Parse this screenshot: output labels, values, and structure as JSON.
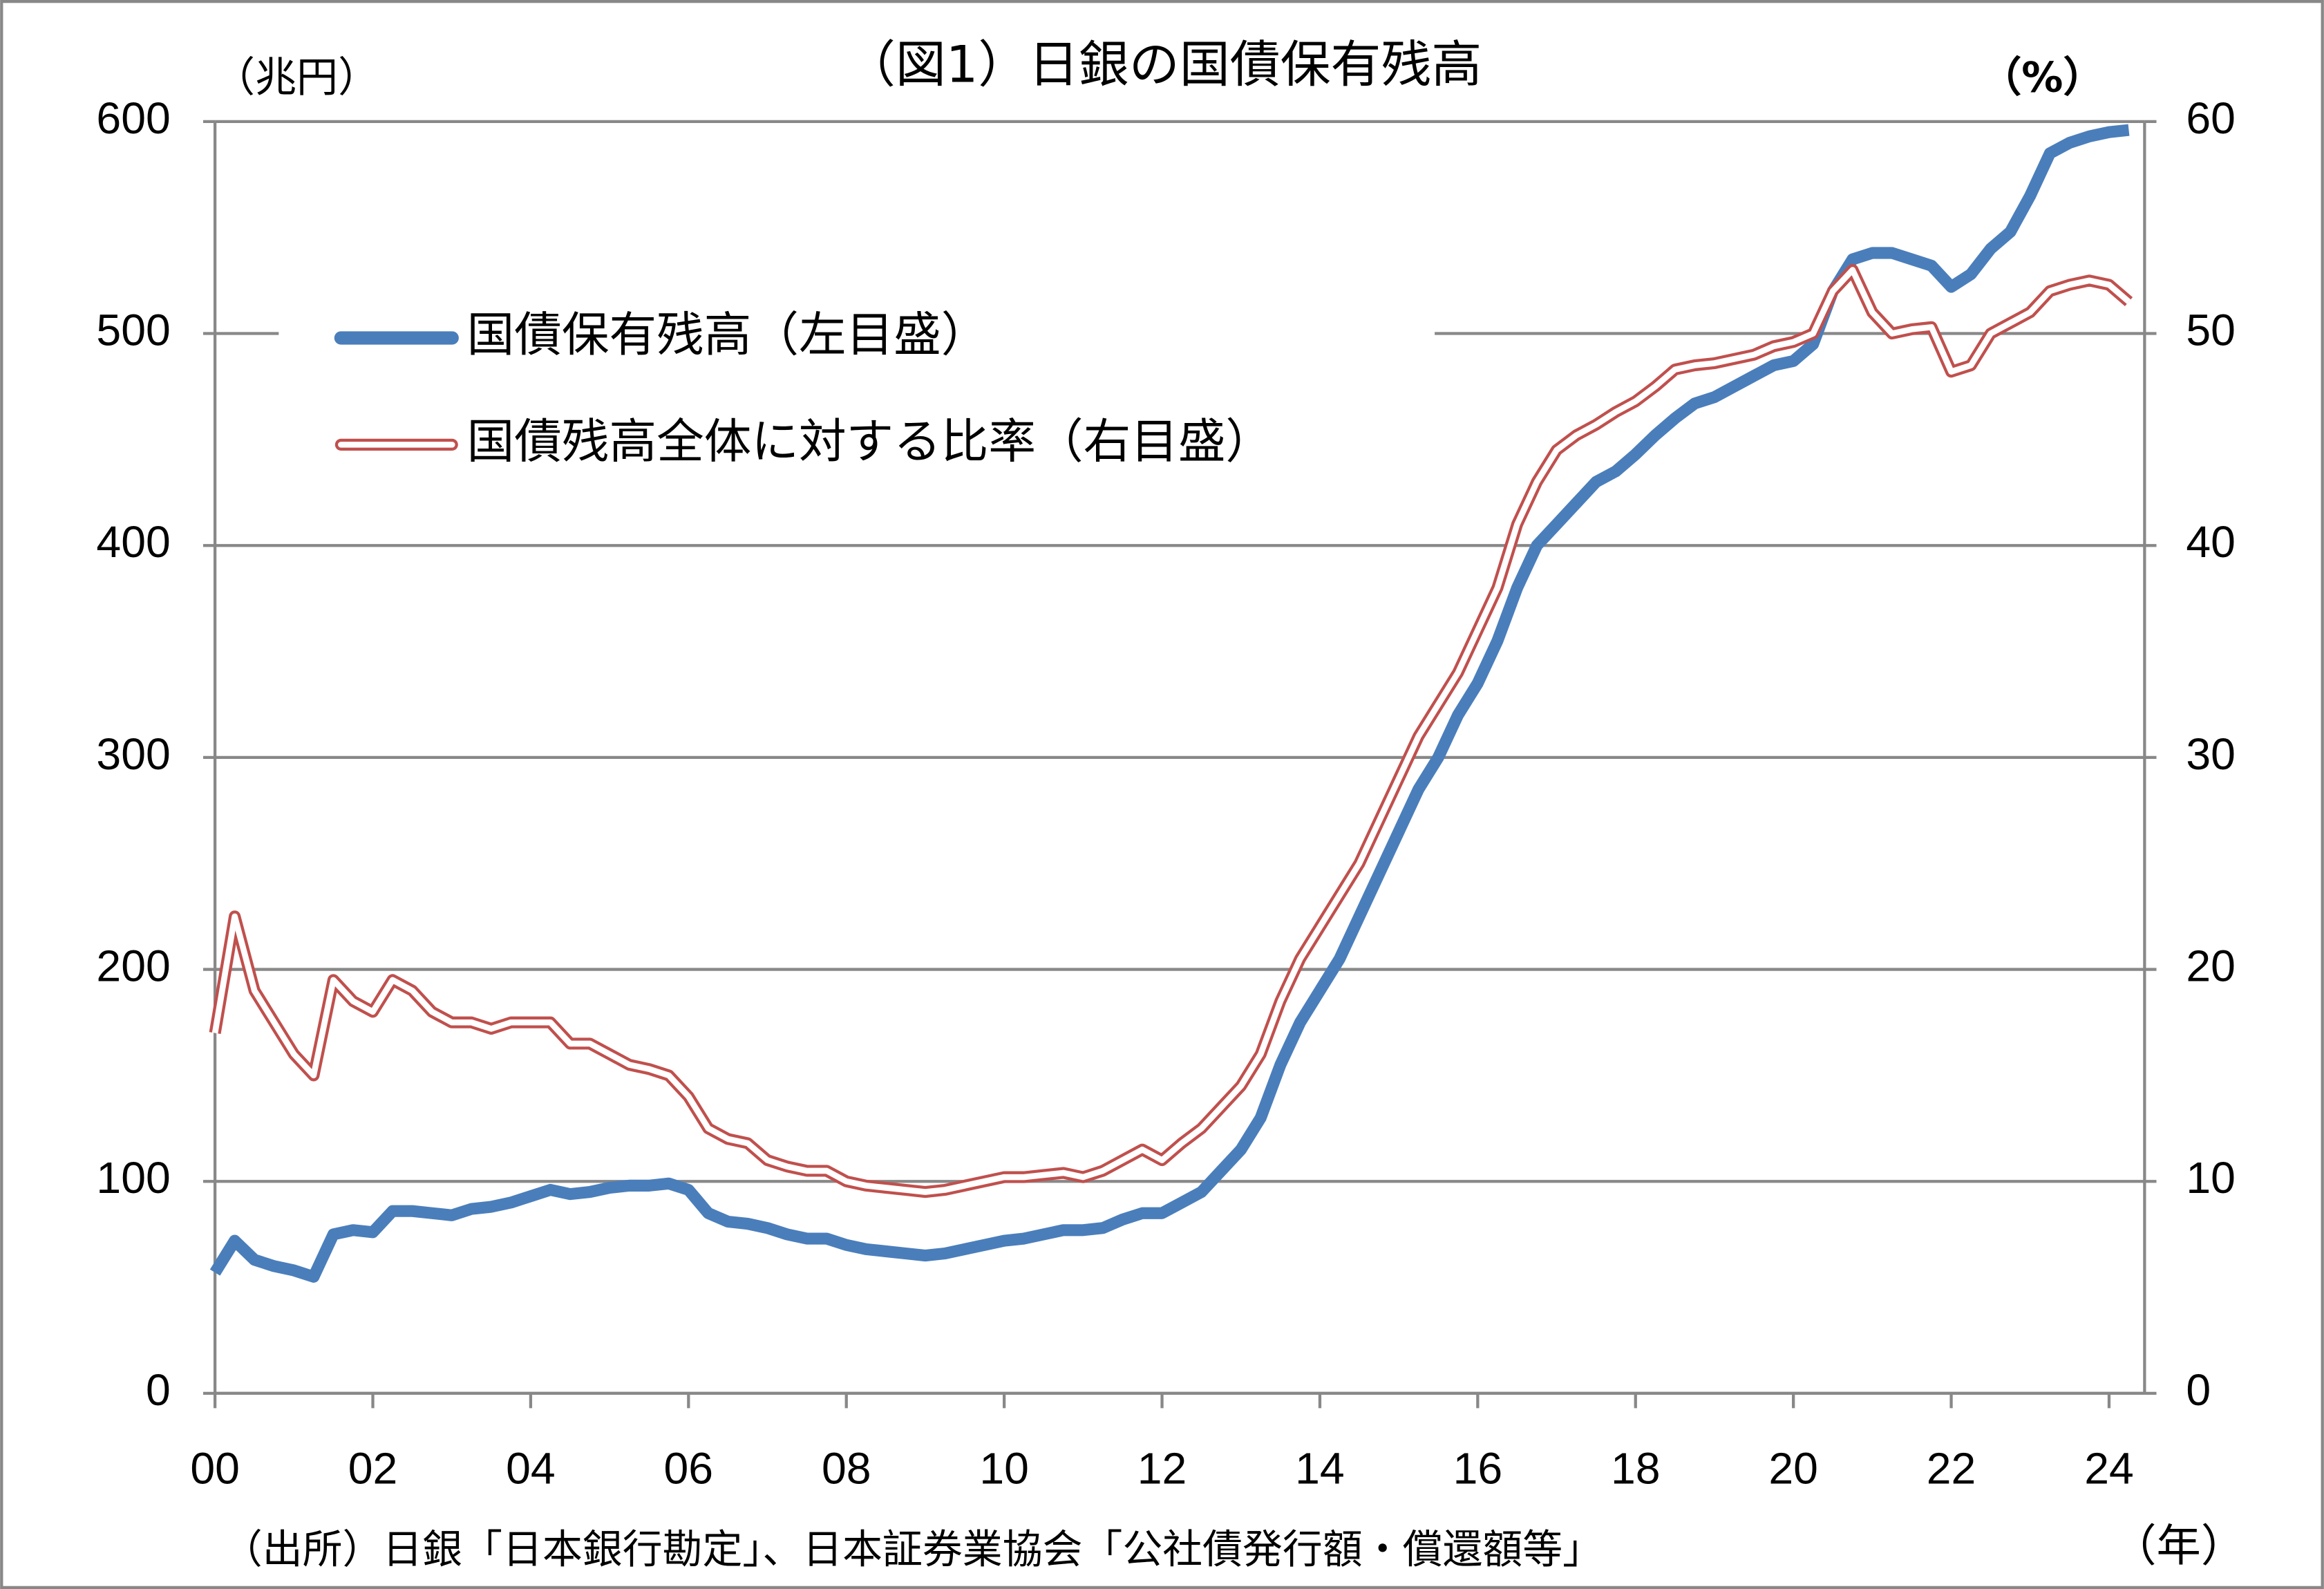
{
  "chart_data": {
    "type": "line",
    "title": "（図1）日銀の国債保有残高",
    "y_unit_label": "（兆円）",
    "y2_unit_label": "（%）",
    "x_unit_label": "（年）",
    "source": "（出所）日銀「日本銀行勘定」、日本証券業協会「公社債発行額・償還額等」",
    "x": [
      2000,
      2000.25,
      2000.5,
      2000.75,
      2001,
      2001.25,
      2001.5,
      2001.75,
      2002,
      2002.25,
      2002.5,
      2002.75,
      2003,
      2003.25,
      2003.5,
      2003.75,
      2004,
      2004.25,
      2004.5,
      2004.75,
      2005,
      2005.25,
      2005.5,
      2005.75,
      2006,
      2006.25,
      2006.5,
      2006.75,
      2007,
      2007.25,
      2007.5,
      2007.75,
      2008,
      2008.25,
      2008.5,
      2008.75,
      2009,
      2009.25,
      2009.5,
      2009.75,
      2010,
      2010.25,
      2010.5,
      2010.75,
      2011,
      2011.25,
      2011.5,
      2011.75,
      2012,
      2012.25,
      2012.5,
      2012.75,
      2013,
      2013.25,
      2013.5,
      2013.75,
      2014,
      2014.25,
      2014.5,
      2014.75,
      2015,
      2015.25,
      2015.5,
      2015.75,
      2016,
      2016.25,
      2016.5,
      2016.75,
      2017,
      2017.25,
      2017.5,
      2017.75,
      2018,
      2018.25,
      2018.5,
      2018.75,
      2019,
      2019.25,
      2019.5,
      2019.75,
      2020,
      2020.25,
      2020.5,
      2020.75,
      2021,
      2021.25,
      2021.5,
      2021.75,
      2022,
      2022.25,
      2022.5,
      2022.75,
      2023,
      2023.25,
      2023.5,
      2023.75,
      2024,
      2024.25
    ],
    "series": [
      {
        "name": "国債保有残高（左目盛）",
        "color": "#4a7ebb",
        "axis": "y",
        "values": [
          57,
          72,
          63,
          60,
          58,
          55,
          75,
          77,
          76,
          86,
          86,
          85,
          84,
          87,
          88,
          90,
          93,
          96,
          94,
          95,
          97,
          98,
          98,
          99,
          96,
          85,
          81,
          80,
          78,
          75,
          73,
          73,
          70,
          68,
          67,
          66,
          65,
          66,
          68,
          70,
          72,
          73,
          75,
          77,
          77,
          78,
          82,
          85,
          85,
          90,
          95,
          105,
          115,
          130,
          155,
          175,
          190,
          205,
          225,
          245,
          265,
          285,
          300,
          320,
          335,
          355,
          380,
          400,
          410,
          420,
          430,
          435,
          443,
          452,
          460,
          467,
          470,
          475,
          480,
          485,
          487,
          495,
          520,
          535,
          538,
          538,
          535,
          532,
          522,
          528,
          540,
          548,
          565,
          585,
          590,
          593,
          595,
          596
        ]
      },
      {
        "name": "国債残高全体に対する比率（右目盛）",
        "color": "#c0504d",
        "axis": "y2",
        "values": [
          17,
          22.5,
          19,
          17.5,
          16,
          15,
          19.5,
          18.5,
          18,
          19.5,
          19,
          18,
          17.5,
          17.5,
          17.2,
          17.5,
          17.5,
          17.5,
          16.5,
          16.5,
          16,
          15.5,
          15.3,
          15,
          14,
          12.5,
          12,
          11.8,
          11,
          10.7,
          10.5,
          10.5,
          10,
          9.8,
          9.7,
          9.6,
          9.5,
          9.6,
          9.8,
          10,
          10.2,
          10.2,
          10.3,
          10.4,
          10.2,
          10.5,
          11,
          11.5,
          11,
          11.8,
          12.5,
          13.5,
          14.5,
          16,
          18.5,
          20.5,
          22,
          23.5,
          25,
          27,
          29,
          31,
          32.5,
          34,
          36,
          38,
          41,
          43,
          44.5,
          45.2,
          45.7,
          46.3,
          46.8,
          47.5,
          48.3,
          48.5,
          48.6,
          48.8,
          49,
          49.4,
          49.6,
          50,
          52,
          53,
          51,
          50,
          50.2,
          50.3,
          48.2,
          48.5,
          50,
          50.5,
          51,
          52,
          52.3,
          52.5,
          52.3,
          51.5
        ]
      }
    ],
    "xlim": [
      2000,
      2024.45
    ],
    "xticks": [
      {
        "value": 2000,
        "label": "00"
      },
      {
        "value": 2002,
        "label": "02"
      },
      {
        "value": 2004,
        "label": "04"
      },
      {
        "value": 2006,
        "label": "06"
      },
      {
        "value": 2008,
        "label": "08"
      },
      {
        "value": 2010,
        "label": "10"
      },
      {
        "value": 2012,
        "label": "12"
      },
      {
        "value": 2014,
        "label": "14"
      },
      {
        "value": 2016,
        "label": "16"
      },
      {
        "value": 2018,
        "label": "18"
      },
      {
        "value": 2020,
        "label": "20"
      },
      {
        "value": 2022,
        "label": "22"
      },
      {
        "value": 2024,
        "label": "24"
      }
    ],
    "ylim": [
      0,
      600
    ],
    "yticks": [
      0,
      100,
      200,
      300,
      400,
      500,
      600
    ],
    "y2lim": [
      0,
      60
    ],
    "y2ticks": [
      0,
      10,
      20,
      30,
      40,
      50,
      60
    ],
    "grid": true,
    "legend": "upper-left"
  }
}
